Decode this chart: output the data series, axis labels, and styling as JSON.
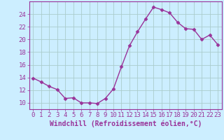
{
  "x": [
    0,
    1,
    2,
    3,
    4,
    5,
    6,
    7,
    8,
    9,
    10,
    11,
    12,
    13,
    14,
    15,
    16,
    17,
    18,
    19,
    20,
    21,
    22,
    23
  ],
  "y": [
    13.9,
    13.3,
    12.6,
    12.1,
    10.7,
    10.8,
    10.0,
    10.0,
    9.9,
    10.7,
    12.2,
    15.7,
    19.0,
    21.2,
    23.2,
    25.1,
    24.7,
    24.2,
    22.7,
    21.7,
    21.6,
    20.0,
    20.7,
    19.2
  ],
  "line_color": "#993399",
  "marker": "D",
  "marker_size": 2.5,
  "bg_color": "#cceeff",
  "grid_color": "#aacccc",
  "xlabel": "Windchill (Refroidissement éolien,°C)",
  "xlim": [
    -0.5,
    23.5
  ],
  "ylim": [
    9.0,
    26.0
  ],
  "yticks": [
    10,
    12,
    14,
    16,
    18,
    20,
    22,
    24
  ],
  "xticks": [
    0,
    1,
    2,
    3,
    4,
    5,
    6,
    7,
    8,
    9,
    10,
    11,
    12,
    13,
    14,
    15,
    16,
    17,
    18,
    19,
    20,
    21,
    22,
    23
  ],
  "tick_color": "#993399",
  "label_color": "#993399",
  "axis_color": "#993399",
  "xlabel_fontsize": 7,
  "tick_fontsize": 6.5,
  "linewidth": 1.0
}
